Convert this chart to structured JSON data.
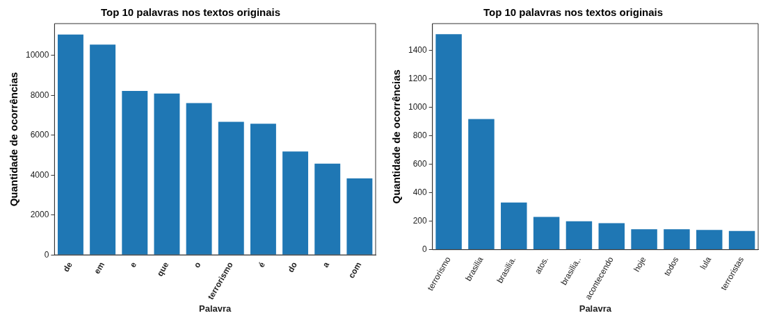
{
  "chart_data": [
    {
      "type": "bar",
      "title": "Top 10 palavras nos textos originais",
      "xlabel": "Palavra",
      "ylabel": "Quantidade de ocorrências",
      "categories": [
        "de",
        "em",
        "e",
        "que",
        "o",
        "terrorismo",
        "é",
        "do",
        "a",
        "com"
      ],
      "values": [
        11050,
        10550,
        8220,
        8090,
        7610,
        6670,
        6580,
        5190,
        4580,
        3840
      ],
      "color": "#1f77b4",
      "ylim": [
        0,
        11600
      ],
      "yticks": [
        0,
        2000,
        4000,
        6000,
        8000,
        10000
      ],
      "grid": false,
      "legend": false
    },
    {
      "type": "bar",
      "title": "Top 10 palavras nos textos originais",
      "xlabel": "Palavra",
      "ylabel": "Quantidade de ocorrências",
      "categories": [
        "terrorismo",
        "brasilia",
        "brasilia.",
        "atos.",
        "brasilia,.",
        "acontecendo",
        "hoje",
        "todos",
        "lula",
        "terroristas"
      ],
      "values": [
        1515,
        919,
        332,
        230,
        200,
        187,
        144,
        144,
        139,
        131
      ],
      "color": "#1f77b4",
      "ylim": [
        0,
        1590
      ],
      "yticks": [
        0,
        200,
        400,
        600,
        800,
        1000,
        1200,
        1400
      ],
      "grid": false,
      "legend": false
    }
  ]
}
